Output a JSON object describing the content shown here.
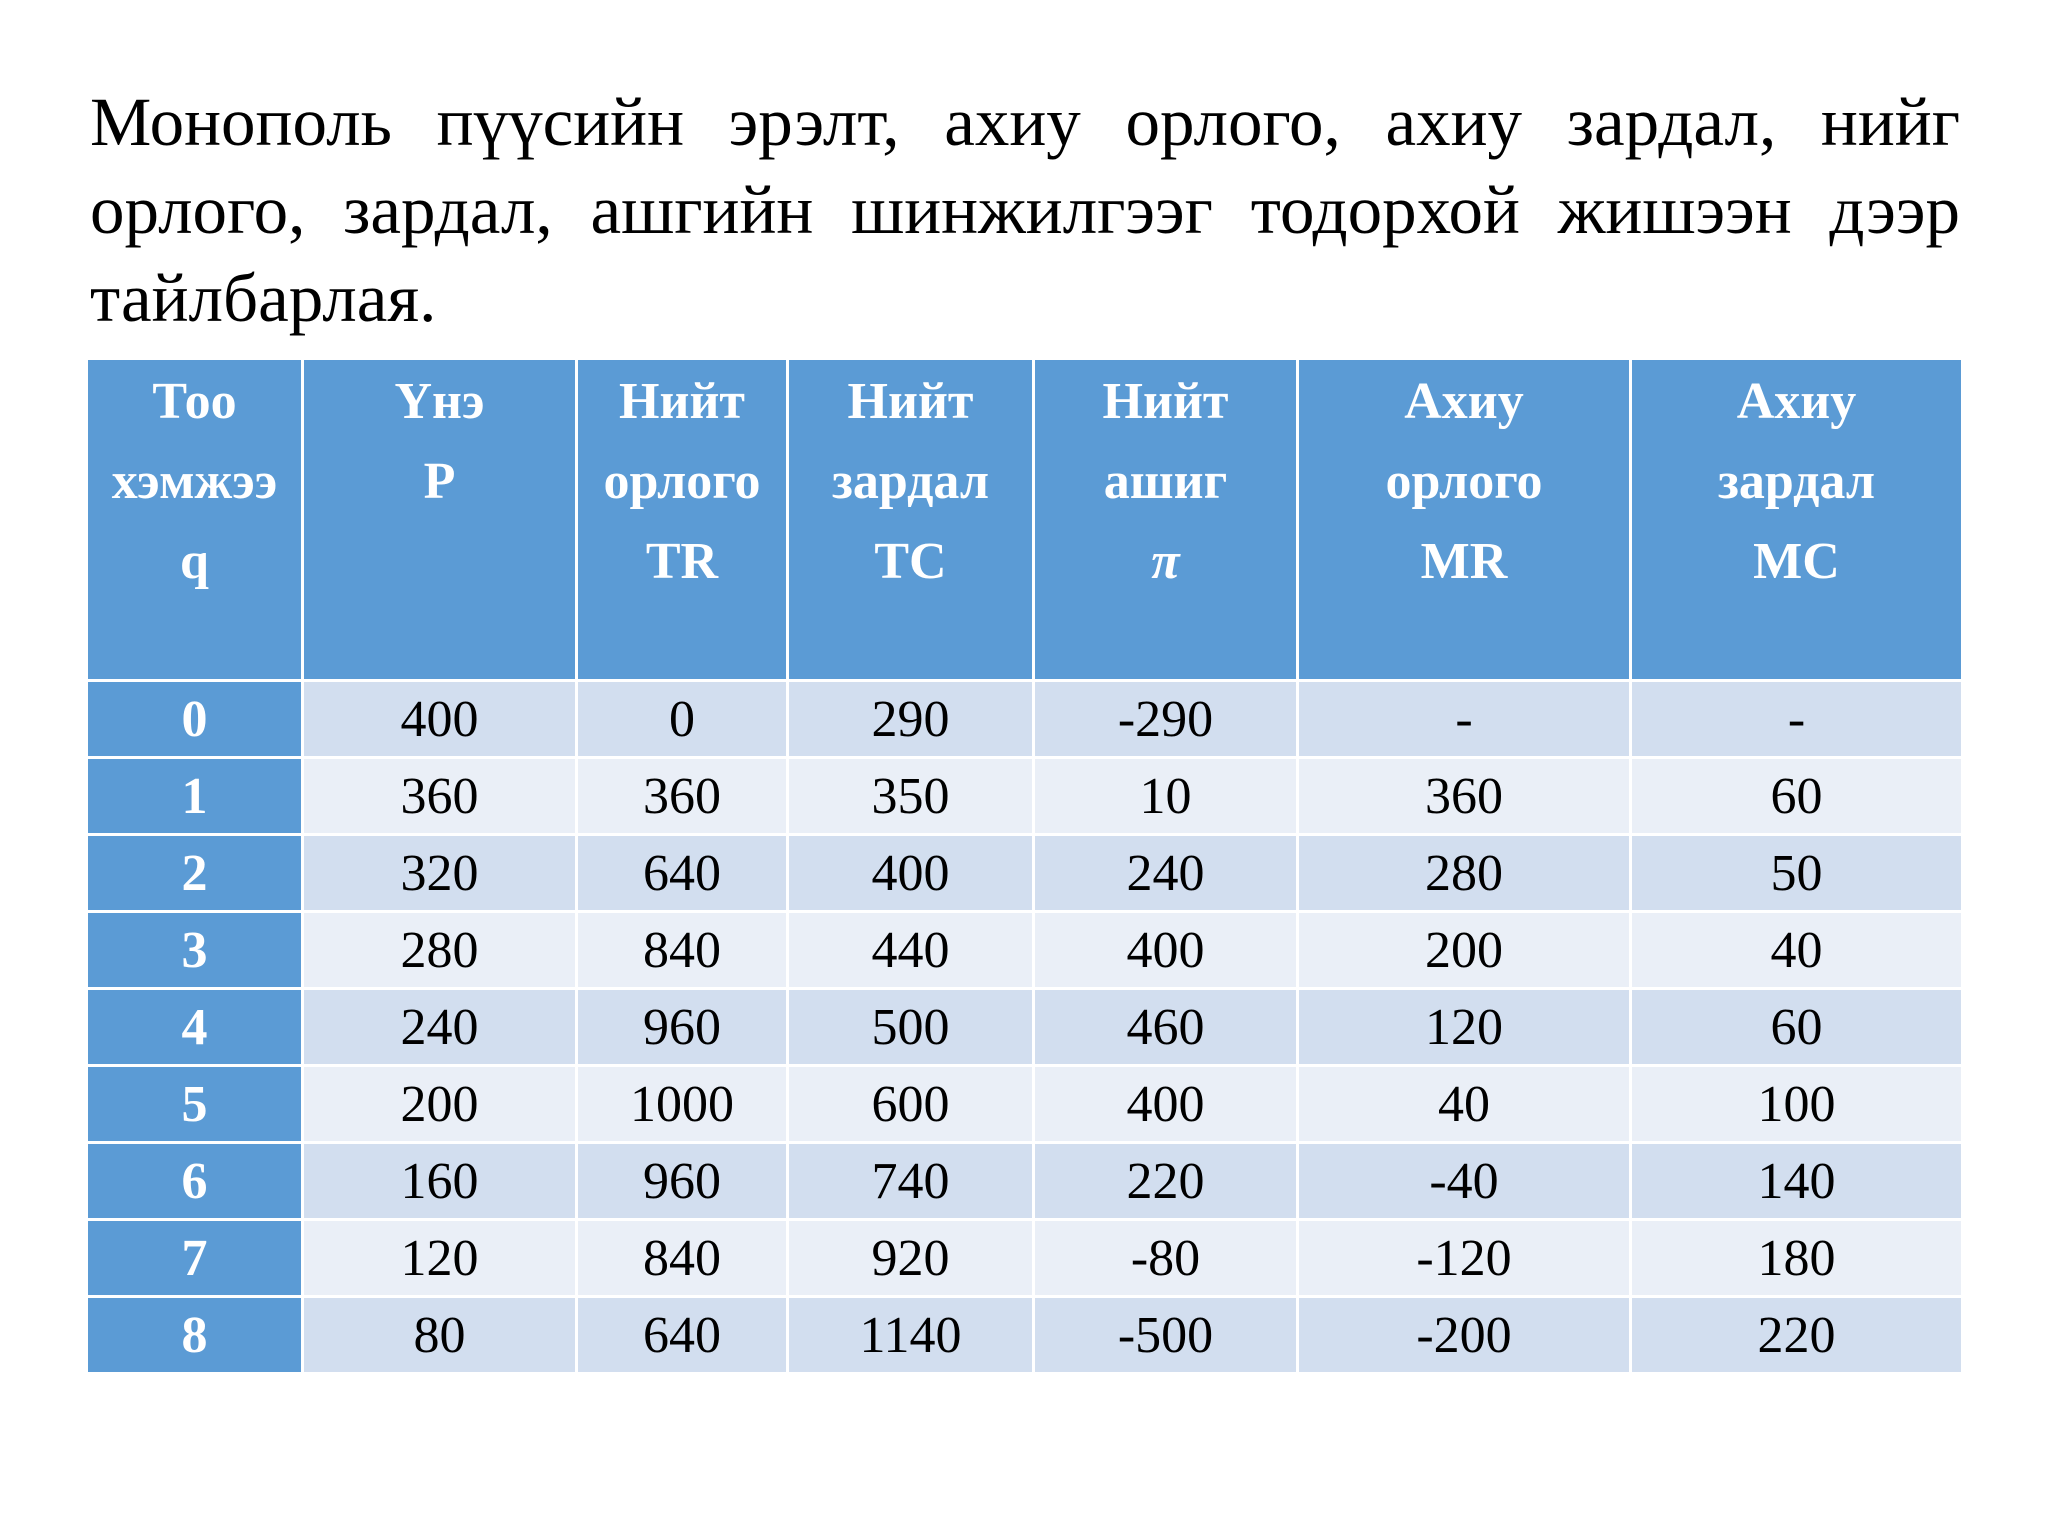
{
  "title": "Монополь пүүсийн эрэлт, ахиу орлого, ахиу зардал, нийг орлого, зардал, ашгийн шинжилгээг тодорхой жишээн дээр тайлбарлая.",
  "table": {
    "headers": [
      {
        "lines": [
          "Тоо",
          "хэмжээ",
          "q"
        ]
      },
      {
        "lines": [
          "Үнэ",
          "P"
        ]
      },
      {
        "lines": [
          "Нийт",
          "орлого",
          "TR"
        ]
      },
      {
        "lines": [
          "Нийт",
          "зардал",
          "TC"
        ]
      },
      {
        "lines": [
          "Нийт",
          "ашиг",
          "π"
        ]
      },
      {
        "lines": [
          "Ахиу",
          "орлого",
          "MR"
        ]
      },
      {
        "lines": [
          "Ахиу",
          "зардал",
          "MC"
        ]
      }
    ],
    "rows": [
      [
        "0",
        "400",
        "0",
        "290",
        "-290",
        "-",
        "-"
      ],
      [
        "1",
        "360",
        "360",
        "350",
        "10",
        "360",
        "60"
      ],
      [
        "2",
        "320",
        "640",
        "400",
        "240",
        "280",
        "50"
      ],
      [
        "3",
        "280",
        "840",
        "440",
        "400",
        "200",
        "40"
      ],
      [
        "4",
        "240",
        "960",
        "500",
        "460",
        "120",
        "60"
      ],
      [
        "5",
        "200",
        "1000",
        "600",
        "400",
        "40",
        "100"
      ],
      [
        "6",
        "160",
        "960",
        "740",
        "220",
        "-40",
        "140"
      ],
      [
        "7",
        "120",
        "840",
        "920",
        "-80",
        "-120",
        "180"
      ],
      [
        "8",
        "80",
        "640",
        "1140",
        "-500",
        "-200",
        "220"
      ]
    ]
  },
  "colors": {
    "header_bg": "#5b9bd5",
    "row_dark": "#d2deef",
    "row_light": "#eaeff7"
  }
}
